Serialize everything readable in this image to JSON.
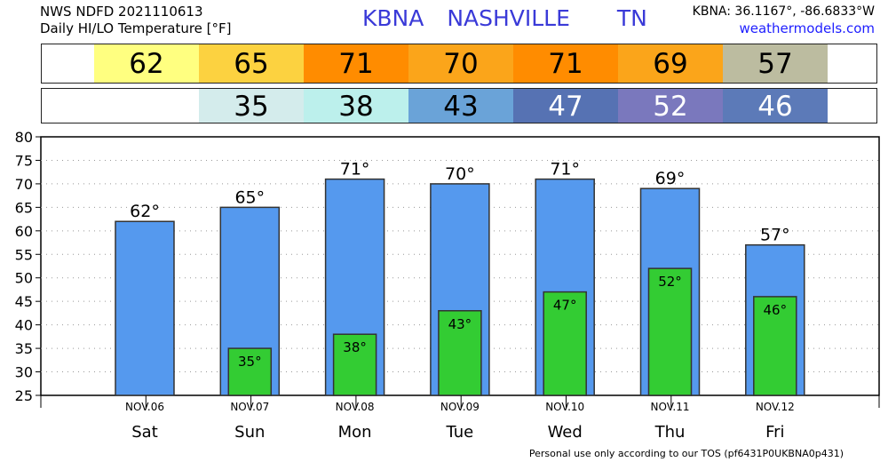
{
  "header": {
    "line1": "NWS NDFD 2021110613",
    "line2": "Daily HI/LO Temperature [°F]",
    "station": "KBNA",
    "city": "NASHVILLE",
    "state": "TN",
    "coords": "KBNA: 36.1167°, -86.6833°W",
    "site": "weathermodels.com"
  },
  "footer": "Personal use only according to our TOS (pf6431P0UKBNA0p431)",
  "hi_strip": [
    {
      "value": "62",
      "color": "#ffff80"
    },
    {
      "value": "65",
      "color": "#fcd240"
    },
    {
      "value": "71",
      "color": "#ff8c00"
    },
    {
      "value": "70",
      "color": "#fba51a"
    },
    {
      "value": "71",
      "color": "#ff8c00"
    },
    {
      "value": "69",
      "color": "#fba51a"
    },
    {
      "value": "57",
      "color": "#bcbca0"
    }
  ],
  "lo_strip": [
    {
      "value": "",
      "color": "#ffffff"
    },
    {
      "value": "35",
      "color": "#d4ecec"
    },
    {
      "value": "38",
      "color": "#bcf0ec"
    },
    {
      "value": "43",
      "color": "#6aa3d8",
      "text_color": "#000000"
    },
    {
      "value": "47",
      "color": "#5672b3",
      "text_color": "#ffffff"
    },
    {
      "value": "52",
      "color": "#7a78bd",
      "text_color": "#ffffff"
    },
    {
      "value": "46",
      "color": "#5c7ab8",
      "text_color": "#ffffff"
    }
  ],
  "chart_data": {
    "type": "bar",
    "categories": [
      "Sat",
      "Sun",
      "Mon",
      "Tue",
      "Wed",
      "Thu",
      "Fri"
    ],
    "dates": [
      "NOV.06",
      "NOV.07",
      "NOV.08",
      "NOV.09",
      "NOV.10",
      "NOV.11",
      "NOV.12"
    ],
    "series": [
      {
        "values": [
          62,
          65,
          71,
          70,
          71,
          69,
          57
        ],
        "labels": [
          "62°",
          "65°",
          "71°",
          "70°",
          "71°",
          "69°",
          "57°"
        ],
        "color": "#5599ee"
      },
      {
        "values": [
          null,
          35,
          38,
          43,
          47,
          52,
          46
        ],
        "labels": [
          "",
          "35°",
          "38°",
          "43°",
          "47°",
          "52°",
          "46°"
        ],
        "color": "#33cc33"
      }
    ],
    "yticks": [
      "80",
      "75",
      "70",
      "65",
      "60",
      "55",
      "50",
      "45",
      "40",
      "35",
      "30",
      "25"
    ],
    "ylim": [
      25,
      80
    ],
    "grid": true
  }
}
